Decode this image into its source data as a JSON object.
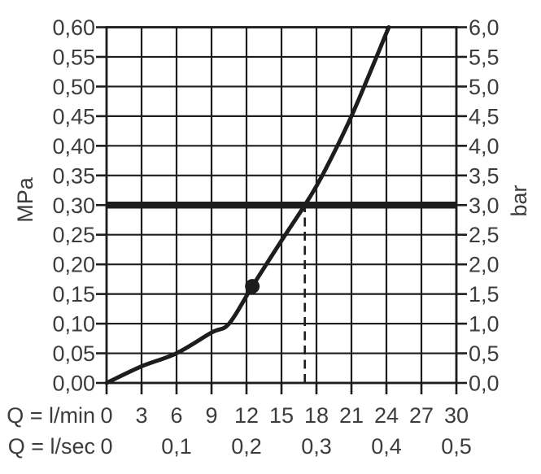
{
  "chart_data": {
    "type": "line",
    "title": "",
    "x_axis": {
      "range_lmin": [
        0,
        30
      ],
      "gridline_step_lmin": 3,
      "row1_unit_label": "Q = l/min",
      "row1_ticks": [
        {
          "label": "0",
          "v": 0
        },
        {
          "label": "3",
          "v": 3
        },
        {
          "label": "6",
          "v": 6
        },
        {
          "label": "9",
          "v": 9
        },
        {
          "label": "12",
          "v": 12
        },
        {
          "label": "15",
          "v": 15
        },
        {
          "label": "18",
          "v": 18
        },
        {
          "label": "21",
          "v": 21
        },
        {
          "label": "24",
          "v": 24
        },
        {
          "label": "27",
          "v": 27
        },
        {
          "label": "30",
          "v": 30
        }
      ],
      "row2_unit_label": "Q = l/sec",
      "row2_ticks": [
        {
          "label": "0",
          "v": 0
        },
        {
          "label": "0,1",
          "v": 6
        },
        {
          "label": "0,2",
          "v": 12
        },
        {
          "label": "0,3",
          "v": 18
        },
        {
          "label": "0,4",
          "v": 24
        },
        {
          "label": "0,5",
          "v": 30
        }
      ]
    },
    "y_axis_left": {
      "label": "MPa",
      "range": [
        0,
        0.6
      ],
      "ticks": [
        {
          "label": "0,00",
          "v": 0.0
        },
        {
          "label": "0,05",
          "v": 0.05
        },
        {
          "label": "0,10",
          "v": 0.1
        },
        {
          "label": "0,15",
          "v": 0.15
        },
        {
          "label": "0,20",
          "v": 0.2
        },
        {
          "label": "0,25",
          "v": 0.25
        },
        {
          "label": "0,30",
          "v": 0.3
        },
        {
          "label": "0,35",
          "v": 0.35
        },
        {
          "label": "0,40",
          "v": 0.4
        },
        {
          "label": "0,45",
          "v": 0.45
        },
        {
          "label": "0,50",
          "v": 0.5
        },
        {
          "label": "0,55",
          "v": 0.55
        },
        {
          "label": "0,60",
          "v": 0.6
        }
      ]
    },
    "y_axis_right": {
      "label": "bar",
      "range": [
        0,
        6
      ],
      "ticks": [
        {
          "label": "0,0",
          "v": 0.0
        },
        {
          "label": "0,5",
          "v": 0.05
        },
        {
          "label": "1,0",
          "v": 0.1
        },
        {
          "label": "1,5",
          "v": 0.15
        },
        {
          "label": "2,0",
          "v": 0.2
        },
        {
          "label": "2,5",
          "v": 0.25
        },
        {
          "label": "3,0",
          "v": 0.3
        },
        {
          "label": "3,5",
          "v": 0.35
        },
        {
          "label": "4,0",
          "v": 0.4
        },
        {
          "label": "4,5",
          "v": 0.45
        },
        {
          "label": "5,0",
          "v": 0.5
        },
        {
          "label": "5,5",
          "v": 0.55
        },
        {
          "label": "6,0",
          "v": 0.6
        }
      ]
    },
    "series": [
      {
        "name": "flow-pressure-curve",
        "points_lmin_mpa": [
          [
            0,
            0.0
          ],
          [
            3,
            0.028
          ],
          [
            6,
            0.05
          ],
          [
            9,
            0.085
          ],
          [
            10.5,
            0.1
          ],
          [
            12.5,
            0.163
          ],
          [
            15,
            0.24
          ],
          [
            17,
            0.3
          ],
          [
            18.5,
            0.35
          ],
          [
            21,
            0.45
          ],
          [
            24.2,
            0.6
          ]
        ]
      }
    ],
    "reference_line": {
      "mpa": 0.3,
      "bar": 3.0,
      "style": "thick-horizontal"
    },
    "dashed_guide": {
      "lmin": 17,
      "from_mpa": 0.0,
      "to_mpa": 0.3
    },
    "marker_point": {
      "lmin": 12.5,
      "mpa": 0.163
    },
    "grid": true,
    "legend": "none",
    "colors": {
      "line": "#1d1d1b",
      "text": "#3c3c3c",
      "background": "#ffffff"
    }
  }
}
